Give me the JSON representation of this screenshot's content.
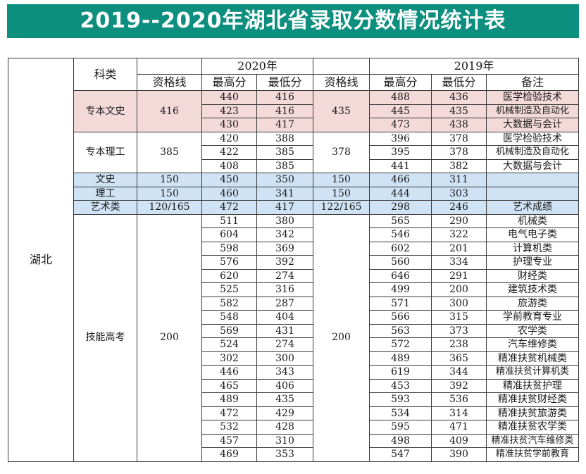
{
  "title": "2019--2020年湖北省录取分数情况统计表",
  "headers": {
    "kelei": "科类",
    "year2020": "2020年",
    "year2019": "2019年",
    "zigexian": "资格线",
    "zuigao": "最高分",
    "zuidi": "最低分",
    "beizhu": "备注"
  },
  "province": "湖北",
  "groups": [
    {
      "name": "专本文史",
      "q2020": "416",
      "q2019": "435",
      "bg": "pink",
      "rows": [
        [
          "440",
          "416",
          "488",
          "436",
          "医学检验技术"
        ],
        [
          "423",
          "416",
          "445",
          "435",
          "机械制造及自动化"
        ],
        [
          "430",
          "417",
          "473",
          "438",
          "大数据与会计"
        ]
      ]
    },
    {
      "name": "专本理工",
      "q2020": "385",
      "q2019": "378",
      "bg": "none",
      "rows": [
        [
          "420",
          "388",
          "396",
          "378",
          "医学检验技术"
        ],
        [
          "422",
          "385",
          "395",
          "378",
          "机械制造及自动化"
        ],
        [
          "408",
          "385",
          "441",
          "382",
          "大数据与会计"
        ]
      ]
    },
    {
      "name": "文史",
      "q2020": "150",
      "q2019": "150",
      "bg": "blue",
      "rows": [
        [
          "450",
          "350",
          "466",
          "311",
          ""
        ]
      ]
    },
    {
      "name": "理工",
      "q2020": "150",
      "q2019": "150",
      "bg": "blue",
      "rows": [
        [
          "460",
          "341",
          "444",
          "303",
          ""
        ]
      ]
    },
    {
      "name": "艺术类",
      "q2020": "120/165",
      "q2019": "122/165",
      "bg": "blue",
      "rows": [
        [
          "472",
          "417",
          "298",
          "246",
          "艺术成绩"
        ]
      ]
    },
    {
      "name": "技能高考",
      "q2020": "200",
      "q2019": "200",
      "bg": "none",
      "rows": [
        [
          "511",
          "380",
          "565",
          "290",
          "机械类"
        ],
        [
          "604",
          "342",
          "546",
          "322",
          "电气电子类"
        ],
        [
          "598",
          "369",
          "602",
          "201",
          "计算机类"
        ],
        [
          "576",
          "392",
          "560",
          "334",
          "护理专业"
        ],
        [
          "620",
          "274",
          "646",
          "291",
          "财经类"
        ],
        [
          "525",
          "316",
          "499",
          "200",
          "建筑技术类"
        ],
        [
          "582",
          "287",
          "571",
          "300",
          "旅游类"
        ],
        [
          "548",
          "404",
          "566",
          "315",
          "学前教育专业"
        ],
        [
          "569",
          "431",
          "563",
          "373",
          "农学类"
        ],
        [
          "524",
          "274",
          "572",
          "238",
          "汽车维修类"
        ],
        [
          "302",
          "300",
          "489",
          "365",
          "精准扶贫机械类"
        ],
        [
          "446",
          "343",
          "619",
          "344",
          "精准扶贫计算机类"
        ],
        [
          "465",
          "406",
          "453",
          "392",
          "精准扶贫护理"
        ],
        [
          "489",
          "435",
          "593",
          "536",
          "精准扶贫财经类"
        ],
        [
          "472",
          "429",
          "534",
          "314",
          "精准扶贫旅游类"
        ],
        [
          "532",
          "428",
          "595",
          "471",
          "精准扶贫农学类"
        ],
        [
          "457",
          "310",
          "498",
          "409",
          "精准扶贫汽车维修类"
        ],
        [
          "469",
          "353",
          "547",
          "390",
          "精准扶贫学前教育"
        ]
      ]
    }
  ],
  "colors": {
    "banner": "#0c8f7f",
    "pink": "#f4d9d9",
    "blue": "#cfe3f5"
  }
}
